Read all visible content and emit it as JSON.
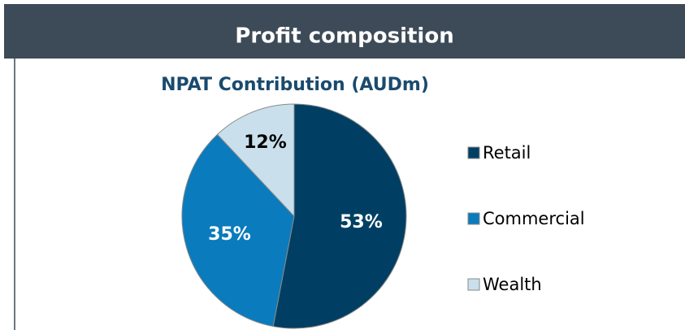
{
  "header": {
    "title": "Profit composition"
  },
  "chart_data": {
    "type": "pie",
    "title": "NPAT Contribution (AUDm)",
    "categories": [
      "Retail",
      "Commercial",
      "Wealth"
    ],
    "values": [
      53,
      35,
      12
    ],
    "value_labels": [
      "53%",
      "35%",
      "12%"
    ],
    "colors": [
      "#003f63",
      "#0a7bbd",
      "#c9dfec"
    ],
    "legend": "right"
  }
}
